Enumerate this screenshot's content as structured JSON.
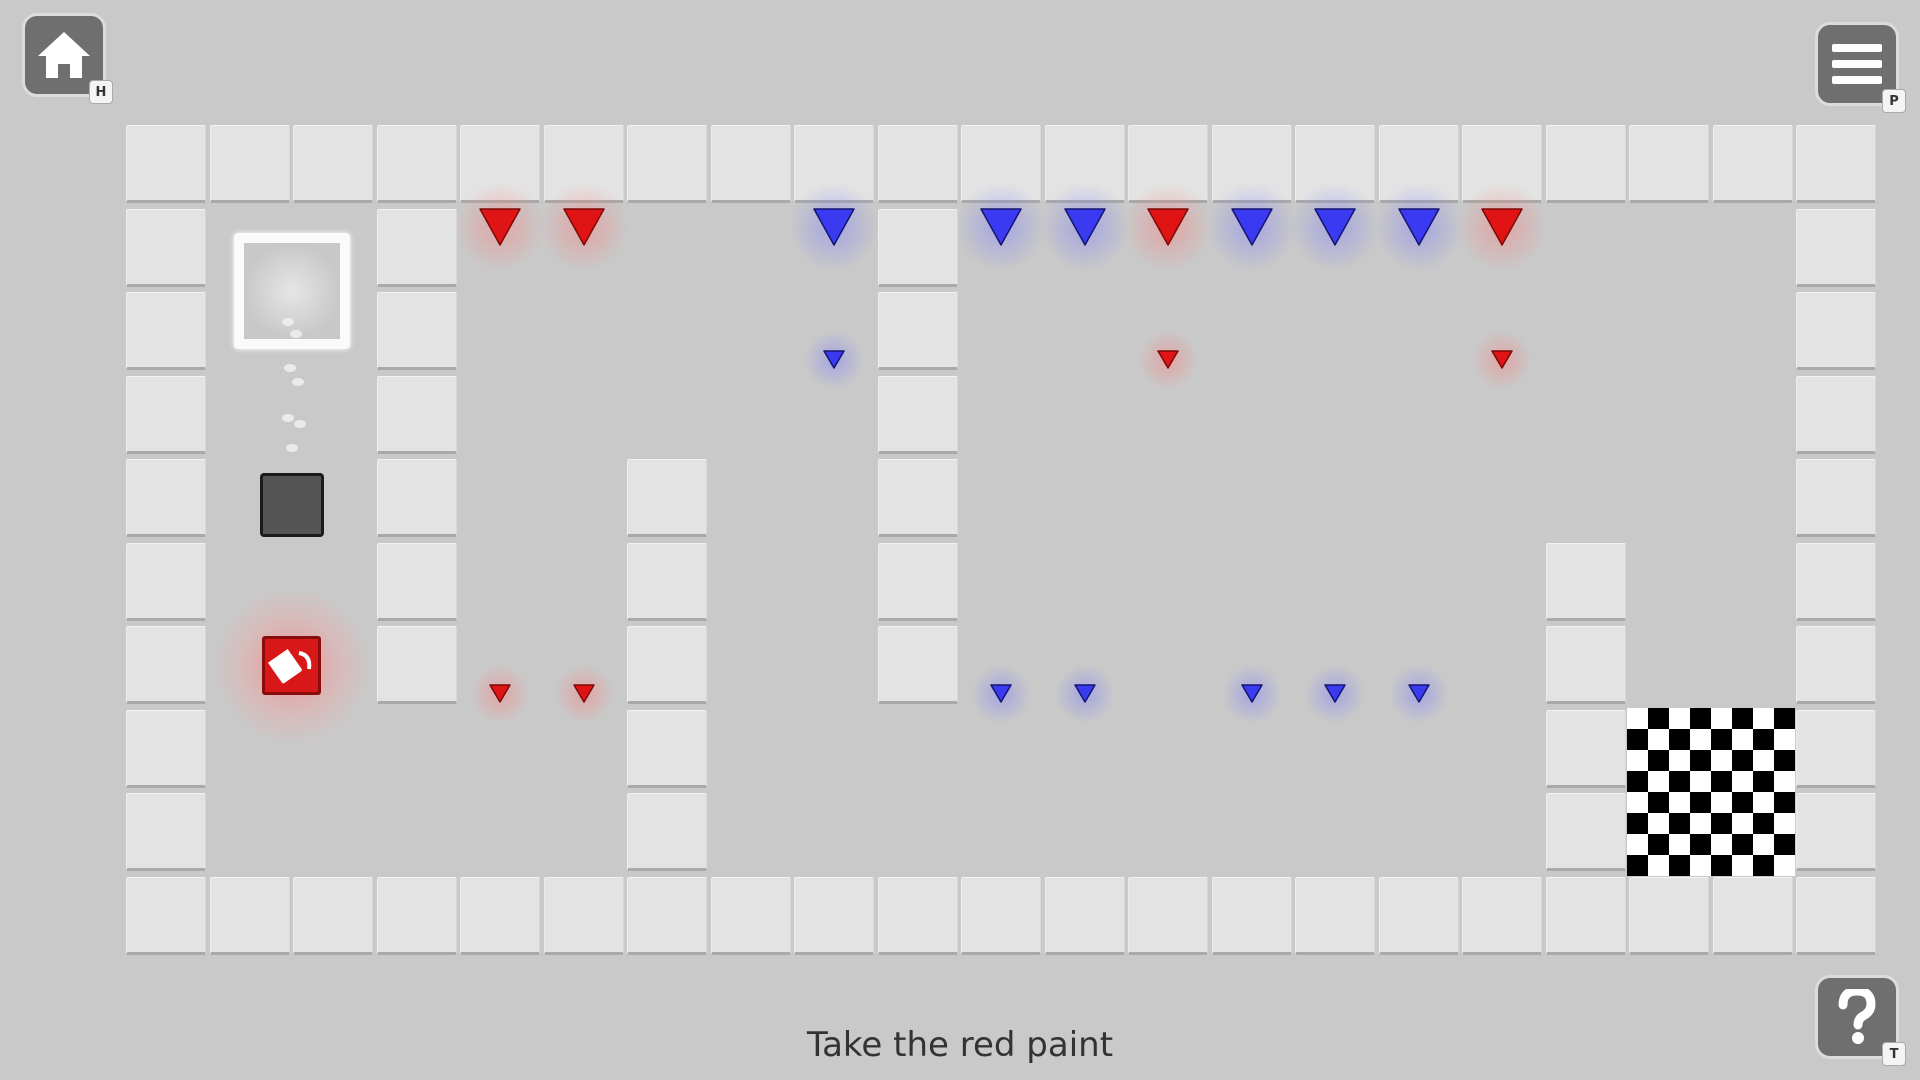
{
  "buttons": {
    "home": {
      "icon": "home-icon",
      "key": "H"
    },
    "menu": {
      "icon": "menu-icon",
      "key": "P"
    },
    "help": {
      "icon": "question-icon",
      "key": "T"
    }
  },
  "hint_text": "Take the red paint",
  "colors": {
    "red": "#e01414",
    "blue": "#3a3af0",
    "background": "#c9c9c9",
    "wall": "#e3e3e3"
  },
  "level": {
    "map": [
      "WWWWWWWWWWWWWWWWWWWWW",
      "W..W.....W..........W",
      "W..W.....W..........W",
      "W..W.....W..........W",
      "W..W..W..W..........W",
      "W..W..W..W.......W..W",
      "W..W..W..W.......W..W",
      "W.....W..........WFFW",
      "W.....W..........WFFW",
      "WWWWWWWWWWWWWWWWWWWWW"
    ],
    "spikes": [
      {
        "color": "red",
        "col": 4,
        "lane": "top",
        "size": "big"
      },
      {
        "color": "red",
        "col": 5,
        "lane": "top",
        "size": "big"
      },
      {
        "color": "blue",
        "col": 8,
        "lane": "top",
        "size": "big"
      },
      {
        "color": "blue",
        "col": 10,
        "lane": "top",
        "size": "big"
      },
      {
        "color": "blue",
        "col": 11,
        "lane": "top",
        "size": "big"
      },
      {
        "color": "red",
        "col": 12,
        "lane": "top",
        "size": "big"
      },
      {
        "color": "blue",
        "col": 13,
        "lane": "top",
        "size": "big"
      },
      {
        "color": "blue",
        "col": 14,
        "lane": "top",
        "size": "big"
      },
      {
        "color": "blue",
        "col": 15,
        "lane": "top",
        "size": "big"
      },
      {
        "color": "red",
        "col": 16,
        "lane": "top",
        "size": "big"
      },
      {
        "color": "blue",
        "col": 8,
        "lane": "mid",
        "size": "small"
      },
      {
        "color": "red",
        "col": 12,
        "lane": "mid",
        "size": "small"
      },
      {
        "color": "red",
        "col": 16,
        "lane": "mid",
        "size": "small"
      },
      {
        "color": "red",
        "col": 4,
        "lane": "low",
        "size": "small"
      },
      {
        "color": "red",
        "col": 5,
        "lane": "low",
        "size": "small"
      },
      {
        "color": "blue",
        "col": 10,
        "lane": "low",
        "size": "small"
      },
      {
        "color": "blue",
        "col": 11,
        "lane": "low",
        "size": "small"
      },
      {
        "color": "blue",
        "col": 13,
        "lane": "low",
        "size": "small"
      },
      {
        "color": "blue",
        "col": 14,
        "lane": "low",
        "size": "small"
      },
      {
        "color": "blue",
        "col": 15,
        "lane": "low",
        "size": "small"
      }
    ],
    "items": {
      "paint": "red",
      "goal": "white-target",
      "player_color": "gray"
    }
  }
}
